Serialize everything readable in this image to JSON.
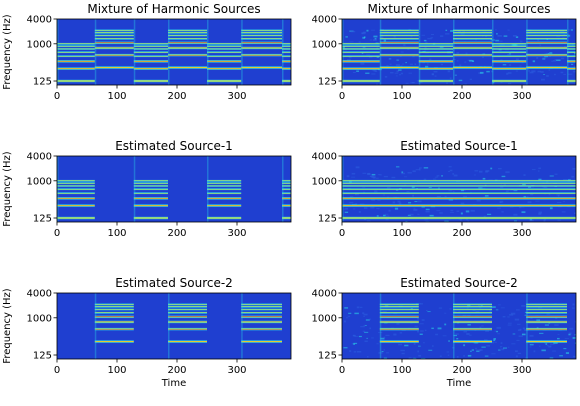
{
  "figure": {
    "xlabel": "Time",
    "ylabel": "Frequency (Hz)"
  },
  "chart_data": [
    {
      "type": "heatmap",
      "title": "Mixture of Harmonic Sources",
      "xlabel": "",
      "ylabel": "Frequency (Hz)",
      "xlim": [
        0,
        390
      ],
      "ylim": [
        100,
        4000
      ],
      "yscale": "log",
      "xticks": [
        0,
        100,
        200,
        300
      ],
      "yticks": [
        125,
        1000,
        4000
      ],
      "segments": [
        {
          "x0": 0,
          "x1": 63,
          "f0": 125,
          "harmonics": 8
        },
        {
          "x0": 63,
          "x1": 128,
          "f0": 265,
          "harmonics": 8
        },
        {
          "x0": 128,
          "x1": 185,
          "f0": 125,
          "harmonics": 8
        },
        {
          "x0": 185,
          "x1": 250,
          "f0": 265,
          "harmonics": 8
        },
        {
          "x0": 250,
          "x1": 307,
          "f0": 125,
          "harmonics": 8
        },
        {
          "x0": 307,
          "x1": 375,
          "f0": 265,
          "harmonics": 8
        },
        {
          "x0": 375,
          "x1": 390,
          "f0": 125,
          "harmonics": 8
        }
      ]
    },
    {
      "type": "heatmap",
      "title": "Mixture of Inharmonic Sources",
      "xlabel": "",
      "ylabel": "",
      "xlim": [
        0,
        390
      ],
      "ylim": [
        100,
        4000
      ],
      "yscale": "log",
      "xticks": [
        0,
        100,
        200,
        300
      ],
      "yticks": [
        125,
        1000,
        4000
      ],
      "segments": [
        {
          "x0": 0,
          "x1": 63,
          "f0": 125,
          "harmonics": 8
        },
        {
          "x0": 63,
          "x1": 128,
          "f0": 265,
          "harmonics": 8
        },
        {
          "x0": 128,
          "x1": 185,
          "f0": 125,
          "harmonics": 8
        },
        {
          "x0": 185,
          "x1": 250,
          "f0": 265,
          "harmonics": 8
        },
        {
          "x0": 250,
          "x1": 307,
          "f0": 125,
          "harmonics": 8
        },
        {
          "x0": 307,
          "x1": 375,
          "f0": 265,
          "harmonics": 8
        },
        {
          "x0": 375,
          "x1": 390,
          "f0": 125,
          "harmonics": 8
        }
      ]
    },
    {
      "type": "heatmap",
      "title": "Estimated Source-1",
      "xlabel": "",
      "ylabel": "Frequency (Hz)",
      "xlim": [
        0,
        390
      ],
      "ylim": [
        100,
        4000
      ],
      "yscale": "log",
      "xticks": [
        0,
        100,
        200,
        300
      ],
      "yticks": [
        125,
        1000,
        4000
      ],
      "segments": [
        {
          "x0": 0,
          "x1": 63,
          "f0": 125,
          "harmonics": 8
        },
        {
          "x0": 128,
          "x1": 185,
          "f0": 125,
          "harmonics": 8
        },
        {
          "x0": 250,
          "x1": 307,
          "f0": 125,
          "harmonics": 8
        },
        {
          "x0": 375,
          "x1": 390,
          "f0": 125,
          "harmonics": 8
        }
      ]
    },
    {
      "type": "heatmap",
      "title": "Estimated Source-1",
      "xlabel": "",
      "ylabel": "",
      "xlim": [
        0,
        390
      ],
      "ylim": [
        100,
        4000
      ],
      "yscale": "log",
      "xticks": [
        0,
        100,
        200,
        300
      ],
      "yticks": [
        125,
        1000,
        4000
      ],
      "segments": [
        {
          "x0": 0,
          "x1": 390,
          "f0": 125,
          "harmonics": 8
        }
      ]
    },
    {
      "type": "heatmap",
      "title": "Estimated Source-2",
      "xlabel": "Time",
      "ylabel": "Frequency (Hz)",
      "xlim": [
        0,
        390
      ],
      "ylim": [
        100,
        4000
      ],
      "yscale": "log",
      "xticks": [
        0,
        100,
        200,
        300
      ],
      "yticks": [
        125,
        1000,
        4000
      ],
      "segments": [
        {
          "x0": 63,
          "x1": 128,
          "f0": 265,
          "harmonics": 8
        },
        {
          "x0": 185,
          "x1": 250,
          "f0": 265,
          "harmonics": 8
        },
        {
          "x0": 307,
          "x1": 375,
          "f0": 265,
          "harmonics": 8
        }
      ]
    },
    {
      "type": "heatmap",
      "title": "Estimated Source-2",
      "xlabel": "Time",
      "ylabel": "",
      "xlim": [
        0,
        390
      ],
      "ylim": [
        100,
        4000
      ],
      "yscale": "log",
      "xticks": [
        0,
        100,
        200,
        300
      ],
      "yticks": [
        125,
        1000,
        4000
      ],
      "segments": [
        {
          "x0": 63,
          "x1": 128,
          "f0": 265,
          "harmonics": 8
        },
        {
          "x0": 185,
          "x1": 250,
          "f0": 265,
          "harmonics": 8
        },
        {
          "x0": 307,
          "x1": 375,
          "f0": 265,
          "harmonics": 8
        }
      ]
    }
  ],
  "colors": {
    "background": "#1f3fd0",
    "noise_low": "#2b5fe0",
    "harmonic_weak": "#28d8e8",
    "harmonic_mid": "#f2e82a",
    "harmonic_strong": "#d81e1e",
    "axis": "#000000"
  }
}
